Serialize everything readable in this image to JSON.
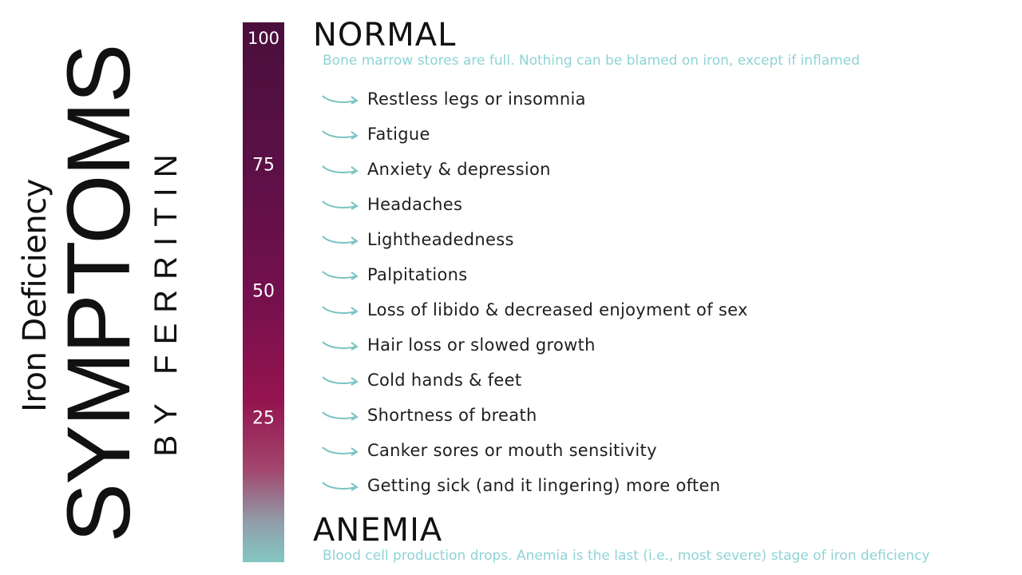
{
  "title": {
    "line1": "Iron Deficiency",
    "line2": "SYMPTOMS",
    "line3": "BY FERRITIN"
  },
  "scale": {
    "ticks": [
      "100",
      "75",
      "50",
      "25"
    ],
    "colors": {
      "top": "#4a0f3c",
      "middle": "#8c134f",
      "bottom": "#84c6c3"
    }
  },
  "top_level": {
    "heading": "NORMAL",
    "description": "Bone marrow stores are full. Nothing can be blamed on iron, except if inflamed"
  },
  "bottom_level": {
    "heading": "ANEMIA",
    "description": "Blood cell production drops. Anemia is the last (i.e., most severe) stage of iron deficiency"
  },
  "symptoms": [
    "Restless legs or insomnia",
    "Fatigue",
    "Anxiety & depression",
    "Headaches",
    "Lightheadedness",
    "Palpitations",
    "Loss of libido & decreased enjoyment of sex",
    "Hair loss or slowed growth",
    "Cold hands & feet",
    "Shortness of breath",
    "Canker sores or mouth sensitivity",
    "Getting sick (and it lingering) more often"
  ],
  "icons": {
    "symptom_marker": "curved-arrow-icon"
  },
  "accent_color": "#7cc3c3"
}
